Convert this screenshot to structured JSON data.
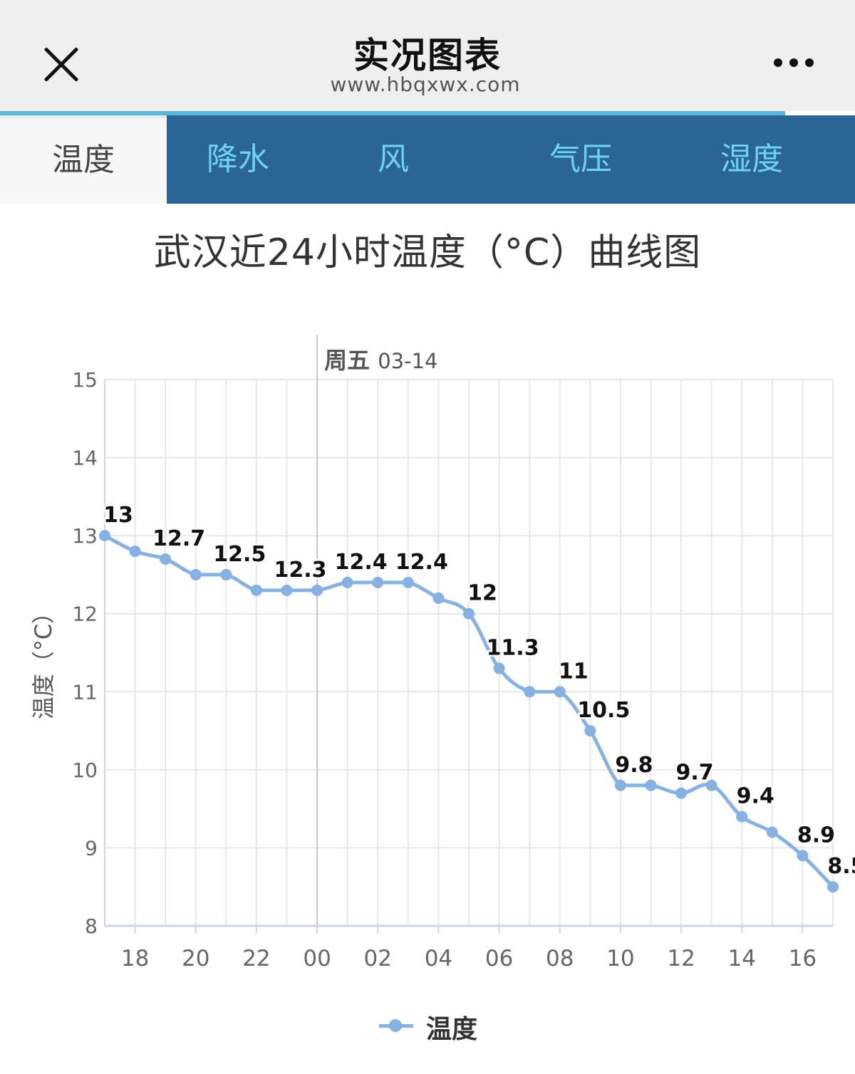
{
  "header": {
    "title": "实况图表",
    "url": "www.hbqxwx.com",
    "close_icon": "close-icon",
    "more_icon": "more-horizontal-icon"
  },
  "tabs": [
    {
      "label": "温度",
      "active": true
    },
    {
      "label": "降水",
      "active": false
    },
    {
      "label": "风",
      "active": false
    },
    {
      "label": "气压",
      "active": false
    },
    {
      "label": "湿度",
      "active": false
    }
  ],
  "colors": {
    "accent": "#2a6596",
    "tab_text": "#6fd2ee",
    "series": "#86b1e3",
    "progress": "#5bb8d6"
  },
  "chart_data": {
    "type": "line",
    "title": "武汉近24小时温度（°C）曲线图",
    "ylabel": "温度（°C）",
    "xlabel": "",
    "day_marker": {
      "at": "00",
      "label_bold": "周五",
      "label_date": "03-14"
    },
    "ylim": [
      8,
      15
    ],
    "yticks": [
      8,
      9,
      10,
      11,
      12,
      13,
      14,
      15
    ],
    "x": [
      "17",
      "18",
      "19",
      "20",
      "21",
      "22",
      "23",
      "00",
      "01",
      "02",
      "03",
      "04",
      "05",
      "06",
      "07",
      "08",
      "09",
      "10",
      "11",
      "12",
      "13",
      "14",
      "15",
      "16",
      "17"
    ],
    "xtick_labels": [
      "18",
      "20",
      "22",
      "00",
      "02",
      "04",
      "06",
      "08",
      "10",
      "12",
      "14",
      "16"
    ],
    "grid": true,
    "legend": "bottom-center",
    "series": [
      {
        "name": "温度",
        "values": [
          13,
          12.8,
          12.7,
          12.5,
          12.5,
          12.3,
          12.3,
          12.3,
          12.4,
          12.4,
          12.4,
          12.2,
          12,
          11.3,
          11,
          11,
          10.5,
          9.8,
          9.8,
          9.7,
          9.8,
          9.4,
          9.2,
          8.9,
          8.5
        ],
        "labeled_points": [
          0,
          2,
          4,
          6,
          8,
          10,
          12,
          13,
          15,
          16,
          17,
          19,
          21,
          23,
          24
        ]
      }
    ]
  }
}
